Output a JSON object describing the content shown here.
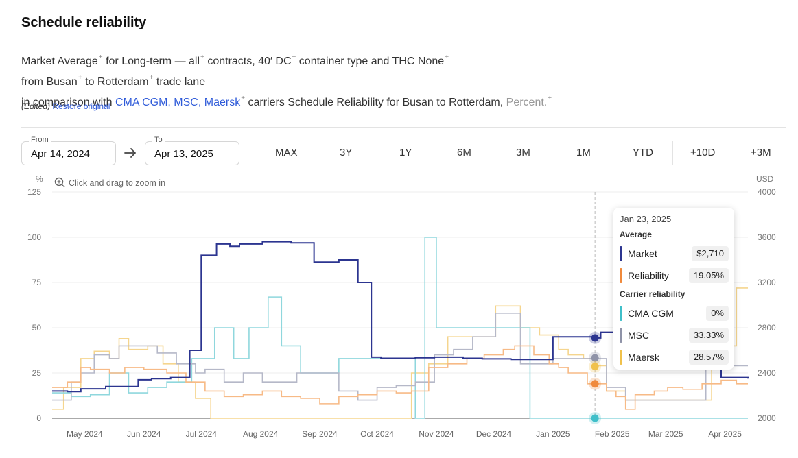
{
  "header": {
    "title": "Schedule reliability",
    "line1": {
      "market": "Market",
      "average": "Average",
      "for": "for",
      "longterm": "Long-term — all",
      "contracts": "contracts,",
      "dc": "40′ DC",
      "container": "container type and THC",
      "none": "None"
    },
    "line2": {
      "from": "from",
      "busan": "Busan",
      "to": "to",
      "rotterdam": "Rotterdam",
      "tradelane": "trade lane"
    },
    "line3": {
      "comparison": "in comparison with",
      "carriers": "CMA CGM, MSC, Maersk",
      "rest": "carriers Schedule Reliability for Busan to Rotterdam,",
      "percent": "Percent."
    },
    "sup": "+",
    "edited": "(Edited)",
    "restore": "Restore original"
  },
  "controls": {
    "from_label": "From",
    "from_value": "Apr 14, 2024",
    "to_label": "To",
    "to_value": "Apr 13, 2025",
    "ranges": [
      "MAX",
      "3Y",
      "1Y",
      "6M",
      "3M",
      "1M",
      "YTD",
      "+10D",
      "+3M"
    ]
  },
  "zoom_hint": "Click and drag to zoom in",
  "tooltip": {
    "date": "Jan 23, 2025",
    "average_heading": "Average",
    "carrier_heading": "Carrier reliability",
    "rows": [
      {
        "name": "Market",
        "value": "$2,710",
        "color": "#2c3590"
      },
      {
        "name": "Reliability",
        "value": "19.05%",
        "color": "#f08a3c"
      },
      {
        "name": "CMA CGM",
        "value": "0%",
        "color": "#3fbfc9"
      },
      {
        "name": "MSC",
        "value": "33.33%",
        "color": "#8f93a8"
      },
      {
        "name": "Maersk",
        "value": "28.57%",
        "color": "#f0c14b"
      }
    ]
  },
  "chart_data": {
    "type": "line",
    "step": true,
    "x_unit": "days since Apr 14, 2024",
    "x_range": [
      0,
      364
    ],
    "x_ticks": [
      {
        "label": "May 2024",
        "x": 17
      },
      {
        "label": "Jun 2024",
        "x": 48
      },
      {
        "label": "Jul 2024",
        "x": 78
      },
      {
        "label": "Aug 2024",
        "x": 109
      },
      {
        "label": "Sep 2024",
        "x": 140
      },
      {
        "label": "Oct 2024",
        "x": 170
      },
      {
        "label": "Nov 2024",
        "x": 201
      },
      {
        "label": "Dec 2024",
        "x": 231
      },
      {
        "label": "Jan 2025",
        "x": 262
      },
      {
        "label": "Feb 2025",
        "x": 293
      },
      {
        "label": "Mar 2025",
        "x": 321
      },
      {
        "label": "Apr 2025",
        "x": 352
      }
    ],
    "y_left": {
      "label": "%",
      "range": [
        0,
        125
      ],
      "ticks": [
        "0",
        "25",
        "50",
        "75",
        "100",
        "125"
      ]
    },
    "y_right": {
      "label": "USD",
      "range": [
        2000,
        4000
      ],
      "ticks": [
        "2000",
        "2400",
        "2800",
        "3200",
        "3600",
        "4000"
      ]
    },
    "cursor_x": 284,
    "grid": true,
    "series": [
      {
        "name": "Market",
        "axis": "right",
        "color": "#2c3590",
        "width": 2,
        "points": [
          [
            0,
            2240
          ],
          [
            8,
            2235
          ],
          [
            15,
            2260
          ],
          [
            28,
            2280
          ],
          [
            45,
            2340
          ],
          [
            52,
            2350
          ],
          [
            62,
            2360
          ],
          [
            72,
            2600
          ],
          [
            78,
            3440
          ],
          [
            86,
            3540
          ],
          [
            93,
            3520
          ],
          [
            98,
            3540
          ],
          [
            110,
            3560
          ],
          [
            125,
            3550
          ],
          [
            137,
            3380
          ],
          [
            150,
            3400
          ],
          [
            160,
            3200
          ],
          [
            167,
            2540
          ],
          [
            172,
            2530
          ],
          [
            180,
            2530
          ],
          [
            190,
            2535
          ],
          [
            200,
            2540
          ],
          [
            215,
            2530
          ],
          [
            225,
            2525
          ],
          [
            240,
            2520
          ],
          [
            255,
            2520
          ],
          [
            262,
            2720
          ],
          [
            275,
            2720
          ],
          [
            284,
            2710
          ],
          [
            287,
            2760
          ],
          [
            300,
            2760
          ],
          [
            345,
            2760
          ],
          [
            350,
            2360
          ],
          [
            364,
            2350
          ]
        ]
      },
      {
        "name": "Reliability",
        "axis": "left",
        "color": "#f7ba86",
        "width": 1.6,
        "points": [
          [
            0,
            17
          ],
          [
            8,
            20
          ],
          [
            15,
            28
          ],
          [
            20,
            27
          ],
          [
            30,
            25
          ],
          [
            38,
            28
          ],
          [
            48,
            27
          ],
          [
            60,
            25
          ],
          [
            70,
            20
          ],
          [
            80,
            15
          ],
          [
            90,
            12
          ],
          [
            100,
            13
          ],
          [
            110,
            15
          ],
          [
            120,
            12
          ],
          [
            130,
            11
          ],
          [
            140,
            8
          ],
          [
            150,
            12
          ],
          [
            160,
            13
          ],
          [
            170,
            15
          ],
          [
            180,
            14
          ],
          [
            188,
            15
          ],
          [
            197,
            28
          ],
          [
            207,
            30
          ],
          [
            217,
            33
          ],
          [
            226,
            35
          ],
          [
            236,
            38
          ],
          [
            242,
            40
          ],
          [
            252,
            35
          ],
          [
            260,
            30
          ],
          [
            265,
            28
          ],
          [
            270,
            25
          ],
          [
            280,
            19
          ],
          [
            290,
            15
          ],
          [
            295,
            12
          ],
          [
            300,
            5
          ],
          [
            305,
            13
          ],
          [
            315,
            15
          ],
          [
            322,
            17
          ],
          [
            330,
            16
          ],
          [
            340,
            19
          ],
          [
            350,
            21
          ],
          [
            355,
            21
          ],
          [
            358,
            19
          ],
          [
            364,
            19
          ]
        ]
      },
      {
        "name": "CMA CGM",
        "axis": "left",
        "color": "#8fd7dd",
        "width": 1.6,
        "points": [
          [
            0,
            14
          ],
          [
            10,
            12
          ],
          [
            20,
            13
          ],
          [
            30,
            25
          ],
          [
            40,
            14
          ],
          [
            50,
            17
          ],
          [
            60,
            20
          ],
          [
            73,
            33
          ],
          [
            85,
            50
          ],
          [
            95,
            33
          ],
          [
            103,
            50
          ],
          [
            113,
            67
          ],
          [
            120,
            40
          ],
          [
            130,
            25
          ],
          [
            150,
            33
          ],
          [
            170,
            33
          ],
          [
            190,
            0
          ],
          [
            195,
            100
          ],
          [
            201,
            50
          ],
          [
            250,
            0
          ],
          [
            290,
            0
          ],
          [
            364,
            0
          ]
        ]
      },
      {
        "name": "MSC",
        "axis": "left",
        "color": "#b5b8c8",
        "width": 1.6,
        "points": [
          [
            0,
            10
          ],
          [
            10,
            20
          ],
          [
            15,
            25
          ],
          [
            22,
            35
          ],
          [
            30,
            33
          ],
          [
            35,
            40
          ],
          [
            45,
            40
          ],
          [
            55,
            36
          ],
          [
            65,
            30
          ],
          [
            75,
            25
          ],
          [
            80,
            27
          ],
          [
            90,
            20
          ],
          [
            100,
            25
          ],
          [
            110,
            20
          ],
          [
            120,
            20
          ],
          [
            128,
            25
          ],
          [
            138,
            25
          ],
          [
            150,
            15
          ],
          [
            160,
            10
          ],
          [
            170,
            17
          ],
          [
            180,
            18
          ],
          [
            190,
            20
          ],
          [
            200,
            35
          ],
          [
            210,
            38
          ],
          [
            220,
            45
          ],
          [
            232,
            58
          ],
          [
            245,
            30
          ],
          [
            262,
            33
          ],
          [
            284,
            33
          ],
          [
            290,
            17
          ],
          [
            300,
            10
          ],
          [
            340,
            10
          ],
          [
            342,
            57
          ],
          [
            352,
            29
          ],
          [
            364,
            29
          ]
        ]
      },
      {
        "name": "Maersk",
        "axis": "left",
        "color": "#f5d58e",
        "width": 1.6,
        "points": [
          [
            0,
            5
          ],
          [
            6,
            17
          ],
          [
            15,
            33
          ],
          [
            22,
            37
          ],
          [
            30,
            33
          ],
          [
            35,
            44
          ],
          [
            40,
            38
          ],
          [
            50,
            40
          ],
          [
            58,
            30
          ],
          [
            66,
            20
          ],
          [
            75,
            11
          ],
          [
            83,
            0
          ],
          [
            130,
            0
          ],
          [
            150,
            0
          ],
          [
            182,
            0
          ],
          [
            188,
            25
          ],
          [
            197,
            30
          ],
          [
            207,
            45
          ],
          [
            217,
            45
          ],
          [
            232,
            62
          ],
          [
            245,
            50
          ],
          [
            255,
            46
          ],
          [
            265,
            38
          ],
          [
            270,
            35
          ],
          [
            278,
            33
          ],
          [
            284,
            29
          ],
          [
            290,
            15
          ],
          [
            300,
            10
          ],
          [
            340,
            10
          ],
          [
            345,
            40
          ],
          [
            358,
            72
          ],
          [
            364,
            72
          ]
        ]
      },
      {
        "name": "Market (foreground)",
        "axis": "right",
        "color": "#2c3590",
        "width": 2,
        "points": []
      }
    ],
    "markers": [
      {
        "series": "Market",
        "axis": "right",
        "x": 284,
        "y": 2710,
        "color": "#2c3590"
      },
      {
        "series": "MSC",
        "axis": "left",
        "x": 284,
        "y": 33.33,
        "color": "#8f93a8"
      },
      {
        "series": "Maersk",
        "axis": "left",
        "x": 284,
        "y": 28.57,
        "color": "#f0c14b"
      },
      {
        "series": "Reliability",
        "axis": "left",
        "x": 284,
        "y": 19.05,
        "color": "#f08a3c"
      },
      {
        "series": "CMA CGM",
        "axis": "left",
        "x": 284,
        "y": 0,
        "color": "#3fbfc9"
      }
    ]
  }
}
